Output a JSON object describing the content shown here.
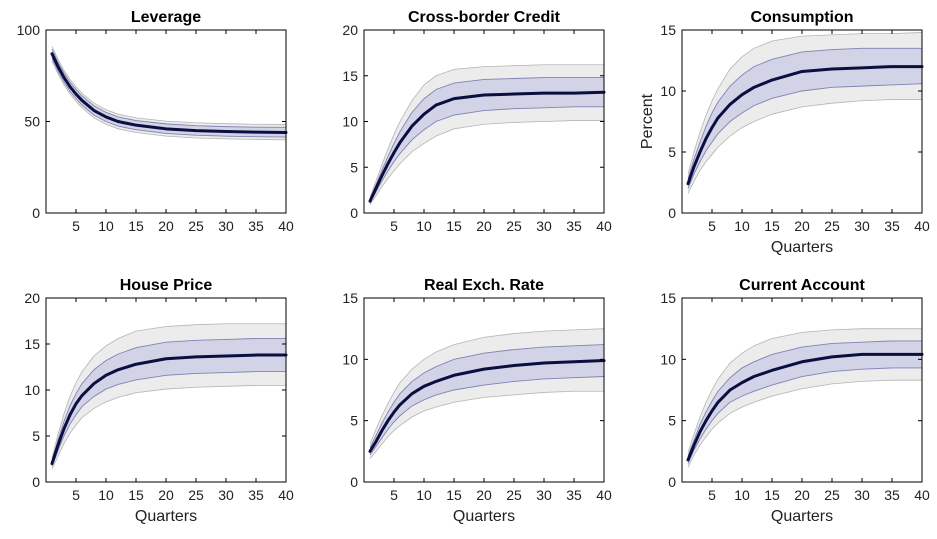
{
  "chart_data": [
    {
      "type": "line",
      "title": "Leverage",
      "xlabel": "",
      "ylabel": "",
      "xlim": [
        0,
        40
      ],
      "ylim": [
        0,
        100
      ],
      "xticks": [
        5,
        10,
        15,
        20,
        25,
        30,
        35,
        40
      ],
      "yticks": [
        0,
        50,
        100
      ],
      "x": [
        1,
        2,
        3,
        4,
        5,
        6,
        8,
        10,
        12,
        15,
        20,
        25,
        30,
        35,
        40
      ],
      "series": [
        {
          "values": [
            87,
            80,
            74,
            69,
            65,
            61.5,
            56,
            52.5,
            50,
            48,
            46,
            45,
            44.5,
            44.2,
            44
          ]
        },
        {
          "values": [
            89.5,
            82.5,
            76.5,
            71.5,
            67.5,
            64,
            58.5,
            55,
            52.5,
            50.5,
            48.7,
            47.7,
            47.2,
            46.9,
            46.8
          ]
        },
        {
          "values": [
            84.5,
            77.5,
            71.5,
            66.5,
            62.5,
            59,
            53.5,
            50,
            47.5,
            45.5,
            43.5,
            42.5,
            42,
            41.7,
            41.5
          ]
        },
        {
          "values": [
            91,
            84,
            78,
            73,
            69,
            65.5,
            60,
            56.5,
            54,
            52,
            50.2,
            49.3,
            48.8,
            48.5,
            48.4
          ]
        },
        {
          "values": [
            83,
            76,
            70,
            65,
            61,
            57.5,
            52,
            48.5,
            46,
            44,
            42,
            41,
            40.5,
            40.2,
            40
          ]
        }
      ]
    },
    {
      "type": "line",
      "title": "Cross-border Credit",
      "xlabel": "",
      "ylabel": "",
      "xlim": [
        0,
        40
      ],
      "ylim": [
        0,
        20
      ],
      "xticks": [
        5,
        10,
        15,
        20,
        25,
        30,
        35,
        40
      ],
      "yticks": [
        0,
        5,
        10,
        15,
        20
      ],
      "x": [
        1,
        2,
        3,
        4,
        5,
        6,
        8,
        10,
        12,
        15,
        20,
        25,
        30,
        35,
        40
      ],
      "series": [
        {
          "values": [
            1.3,
            2.7,
            4.1,
            5.4,
            6.6,
            7.7,
            9.5,
            10.8,
            11.8,
            12.5,
            12.9,
            13.0,
            13.1,
            13.1,
            13.2
          ]
        },
        {
          "values": [
            1.5,
            3.1,
            4.7,
            6.2,
            7.6,
            8.9,
            11.0,
            12.5,
            13.5,
            14.2,
            14.6,
            14.7,
            14.8,
            14.8,
            14.8
          ]
        },
        {
          "values": [
            1.1,
            2.3,
            3.5,
            4.6,
            5.6,
            6.5,
            8.0,
            9.1,
            10.0,
            10.7,
            11.2,
            11.4,
            11.5,
            11.6,
            11.6
          ]
        },
        {
          "values": [
            1.7,
            3.5,
            5.3,
            7.0,
            8.6,
            10.0,
            12.3,
            14.0,
            15.0,
            15.7,
            16.0,
            16.1,
            16.2,
            16.2,
            16.2
          ]
        },
        {
          "values": [
            0.9,
            1.9,
            2.9,
            3.8,
            4.6,
            5.4,
            6.7,
            7.6,
            8.4,
            9.2,
            9.7,
            9.9,
            10.0,
            10.1,
            10.1
          ]
        }
      ]
    },
    {
      "type": "line",
      "title": "Consumption",
      "xlabel": "Quarters",
      "ylabel": "Percent",
      "xlim": [
        0,
        40
      ],
      "ylim": [
        0,
        15
      ],
      "xticks": [
        5,
        10,
        15,
        20,
        25,
        30,
        35,
        40
      ],
      "yticks": [
        0,
        5,
        10,
        15
      ],
      "x": [
        1,
        2,
        3,
        4,
        5,
        6,
        8,
        10,
        12,
        15,
        20,
        25,
        30,
        35,
        40
      ],
      "series": [
        {
          "values": [
            2.4,
            3.8,
            5.0,
            6.1,
            7.0,
            7.8,
            8.9,
            9.7,
            10.3,
            10.9,
            11.6,
            11.8,
            11.9,
            12.0,
            12.0
          ]
        },
        {
          "values": [
            2.8,
            4.4,
            5.8,
            7.1,
            8.2,
            9.1,
            10.4,
            11.3,
            12.0,
            12.6,
            13.2,
            13.4,
            13.5,
            13.5,
            13.5
          ]
        },
        {
          "values": [
            2.0,
            3.2,
            4.2,
            5.1,
            5.8,
            6.5,
            7.5,
            8.2,
            8.8,
            9.4,
            10.0,
            10.3,
            10.4,
            10.5,
            10.6
          ]
        },
        {
          "values": [
            3.2,
            5.0,
            6.6,
            8.0,
            9.2,
            10.2,
            11.8,
            12.8,
            13.5,
            14.1,
            14.5,
            14.6,
            14.7,
            14.7,
            14.8
          ]
        },
        {
          "values": [
            1.6,
            2.6,
            3.5,
            4.2,
            4.8,
            5.4,
            6.3,
            7.0,
            7.5,
            8.1,
            8.7,
            9.0,
            9.2,
            9.3,
            9.3
          ]
        }
      ]
    },
    {
      "type": "line",
      "title": "House Price",
      "xlabel": "Quarters",
      "ylabel": "",
      "xlim": [
        0,
        40
      ],
      "ylim": [
        0,
        20
      ],
      "xticks": [
        5,
        10,
        15,
        20,
        25,
        30,
        35,
        40
      ],
      "yticks": [
        0,
        5,
        10,
        15,
        20
      ],
      "x": [
        1,
        2,
        3,
        4,
        5,
        6,
        8,
        10,
        12,
        15,
        20,
        25,
        30,
        35,
        40
      ],
      "series": [
        {
          "values": [
            2.0,
            4.0,
            5.8,
            7.3,
            8.5,
            9.4,
            10.7,
            11.6,
            12.2,
            12.8,
            13.4,
            13.6,
            13.7,
            13.8,
            13.8
          ]
        },
        {
          "values": [
            2.3,
            4.6,
            6.6,
            8.3,
            9.6,
            10.7,
            12.2,
            13.2,
            13.9,
            14.6,
            15.2,
            15.4,
            15.5,
            15.6,
            15.6
          ]
        },
        {
          "values": [
            1.7,
            3.4,
            5.0,
            6.3,
            7.3,
            8.2,
            9.3,
            10.1,
            10.6,
            11.1,
            11.6,
            11.8,
            11.9,
            12.0,
            12.0
          ]
        },
        {
          "values": [
            2.6,
            5.2,
            7.4,
            9.3,
            10.8,
            12.0,
            13.7,
            14.8,
            15.6,
            16.4,
            16.9,
            17.1,
            17.2,
            17.2,
            17.2
          ]
        },
        {
          "values": [
            1.4,
            2.8,
            4.2,
            5.3,
            6.2,
            7.0,
            8.0,
            8.7,
            9.2,
            9.7,
            10.1,
            10.3,
            10.4,
            10.5,
            10.5
          ]
        }
      ]
    },
    {
      "type": "line",
      "title": "Real Exch. Rate",
      "xlabel": "Quarters",
      "ylabel": "",
      "xlim": [
        0,
        40
      ],
      "ylim": [
        0,
        15
      ],
      "xticks": [
        5,
        10,
        15,
        20,
        25,
        30,
        35,
        40
      ],
      "yticks": [
        0,
        5,
        10,
        15
      ],
      "x": [
        1,
        2,
        3,
        4,
        5,
        6,
        8,
        10,
        12,
        15,
        20,
        25,
        30,
        35,
        40
      ],
      "series": [
        {
          "values": [
            2.5,
            3.3,
            4.2,
            5.0,
            5.7,
            6.3,
            7.2,
            7.8,
            8.2,
            8.7,
            9.2,
            9.5,
            9.7,
            9.8,
            9.9
          ]
        },
        {
          "values": [
            2.8,
            3.8,
            4.8,
            5.7,
            6.5,
            7.2,
            8.2,
            8.9,
            9.4,
            10.0,
            10.5,
            10.8,
            11.0,
            11.1,
            11.2
          ]
        },
        {
          "values": [
            2.2,
            2.9,
            3.6,
            4.3,
            4.9,
            5.4,
            6.2,
            6.7,
            7.1,
            7.5,
            7.9,
            8.2,
            8.4,
            8.5,
            8.6
          ]
        },
        {
          "values": [
            3.1,
            4.3,
            5.4,
            6.4,
            7.3,
            8.1,
            9.2,
            10.0,
            10.6,
            11.2,
            11.8,
            12.1,
            12.3,
            12.4,
            12.5
          ]
        },
        {
          "values": [
            1.9,
            2.5,
            3.1,
            3.7,
            4.2,
            4.6,
            5.3,
            5.8,
            6.1,
            6.5,
            6.9,
            7.1,
            7.3,
            7.4,
            7.4
          ]
        }
      ]
    },
    {
      "type": "line",
      "title": "Current Account",
      "xlabel": "Quarters",
      "ylabel": "",
      "xlim": [
        0,
        40
      ],
      "ylim": [
        0,
        15
      ],
      "xticks": [
        5,
        10,
        15,
        20,
        25,
        30,
        35,
        40
      ],
      "yticks": [
        0,
        5,
        10,
        15
      ],
      "x": [
        1,
        2,
        3,
        4,
        5,
        6,
        8,
        10,
        12,
        15,
        20,
        25,
        30,
        35,
        40
      ],
      "series": [
        {
          "values": [
            1.8,
            3.0,
            4.1,
            5.0,
            5.8,
            6.5,
            7.5,
            8.1,
            8.6,
            9.1,
            9.8,
            10.2,
            10.4,
            10.4,
            10.4
          ]
        },
        {
          "values": [
            2.1,
            3.4,
            4.7,
            5.7,
            6.6,
            7.4,
            8.5,
            9.3,
            9.8,
            10.4,
            11.0,
            11.3,
            11.4,
            11.5,
            11.5
          ]
        },
        {
          "values": [
            1.5,
            2.6,
            3.5,
            4.3,
            5.0,
            5.6,
            6.5,
            7.0,
            7.4,
            7.9,
            8.6,
            9.0,
            9.2,
            9.3,
            9.3
          ]
        },
        {
          "values": [
            2.4,
            3.9,
            5.3,
            6.5,
            7.5,
            8.4,
            9.7,
            10.5,
            11.1,
            11.7,
            12.2,
            12.4,
            12.5,
            12.5,
            12.5
          ]
        },
        {
          "values": [
            1.2,
            2.2,
            3.0,
            3.7,
            4.3,
            4.8,
            5.6,
            6.1,
            6.5,
            7.0,
            7.6,
            8.0,
            8.2,
            8.3,
            8.3
          ]
        }
      ]
    }
  ],
  "colors": {
    "median": "#0a0f3f",
    "inner_band": "#d2d3e6",
    "inner_band_edge": "#7f83b3",
    "outer_band": "#ececec",
    "outer_band_edge": "#b4b4b4",
    "axis": "#000000",
    "text": "#222222"
  }
}
